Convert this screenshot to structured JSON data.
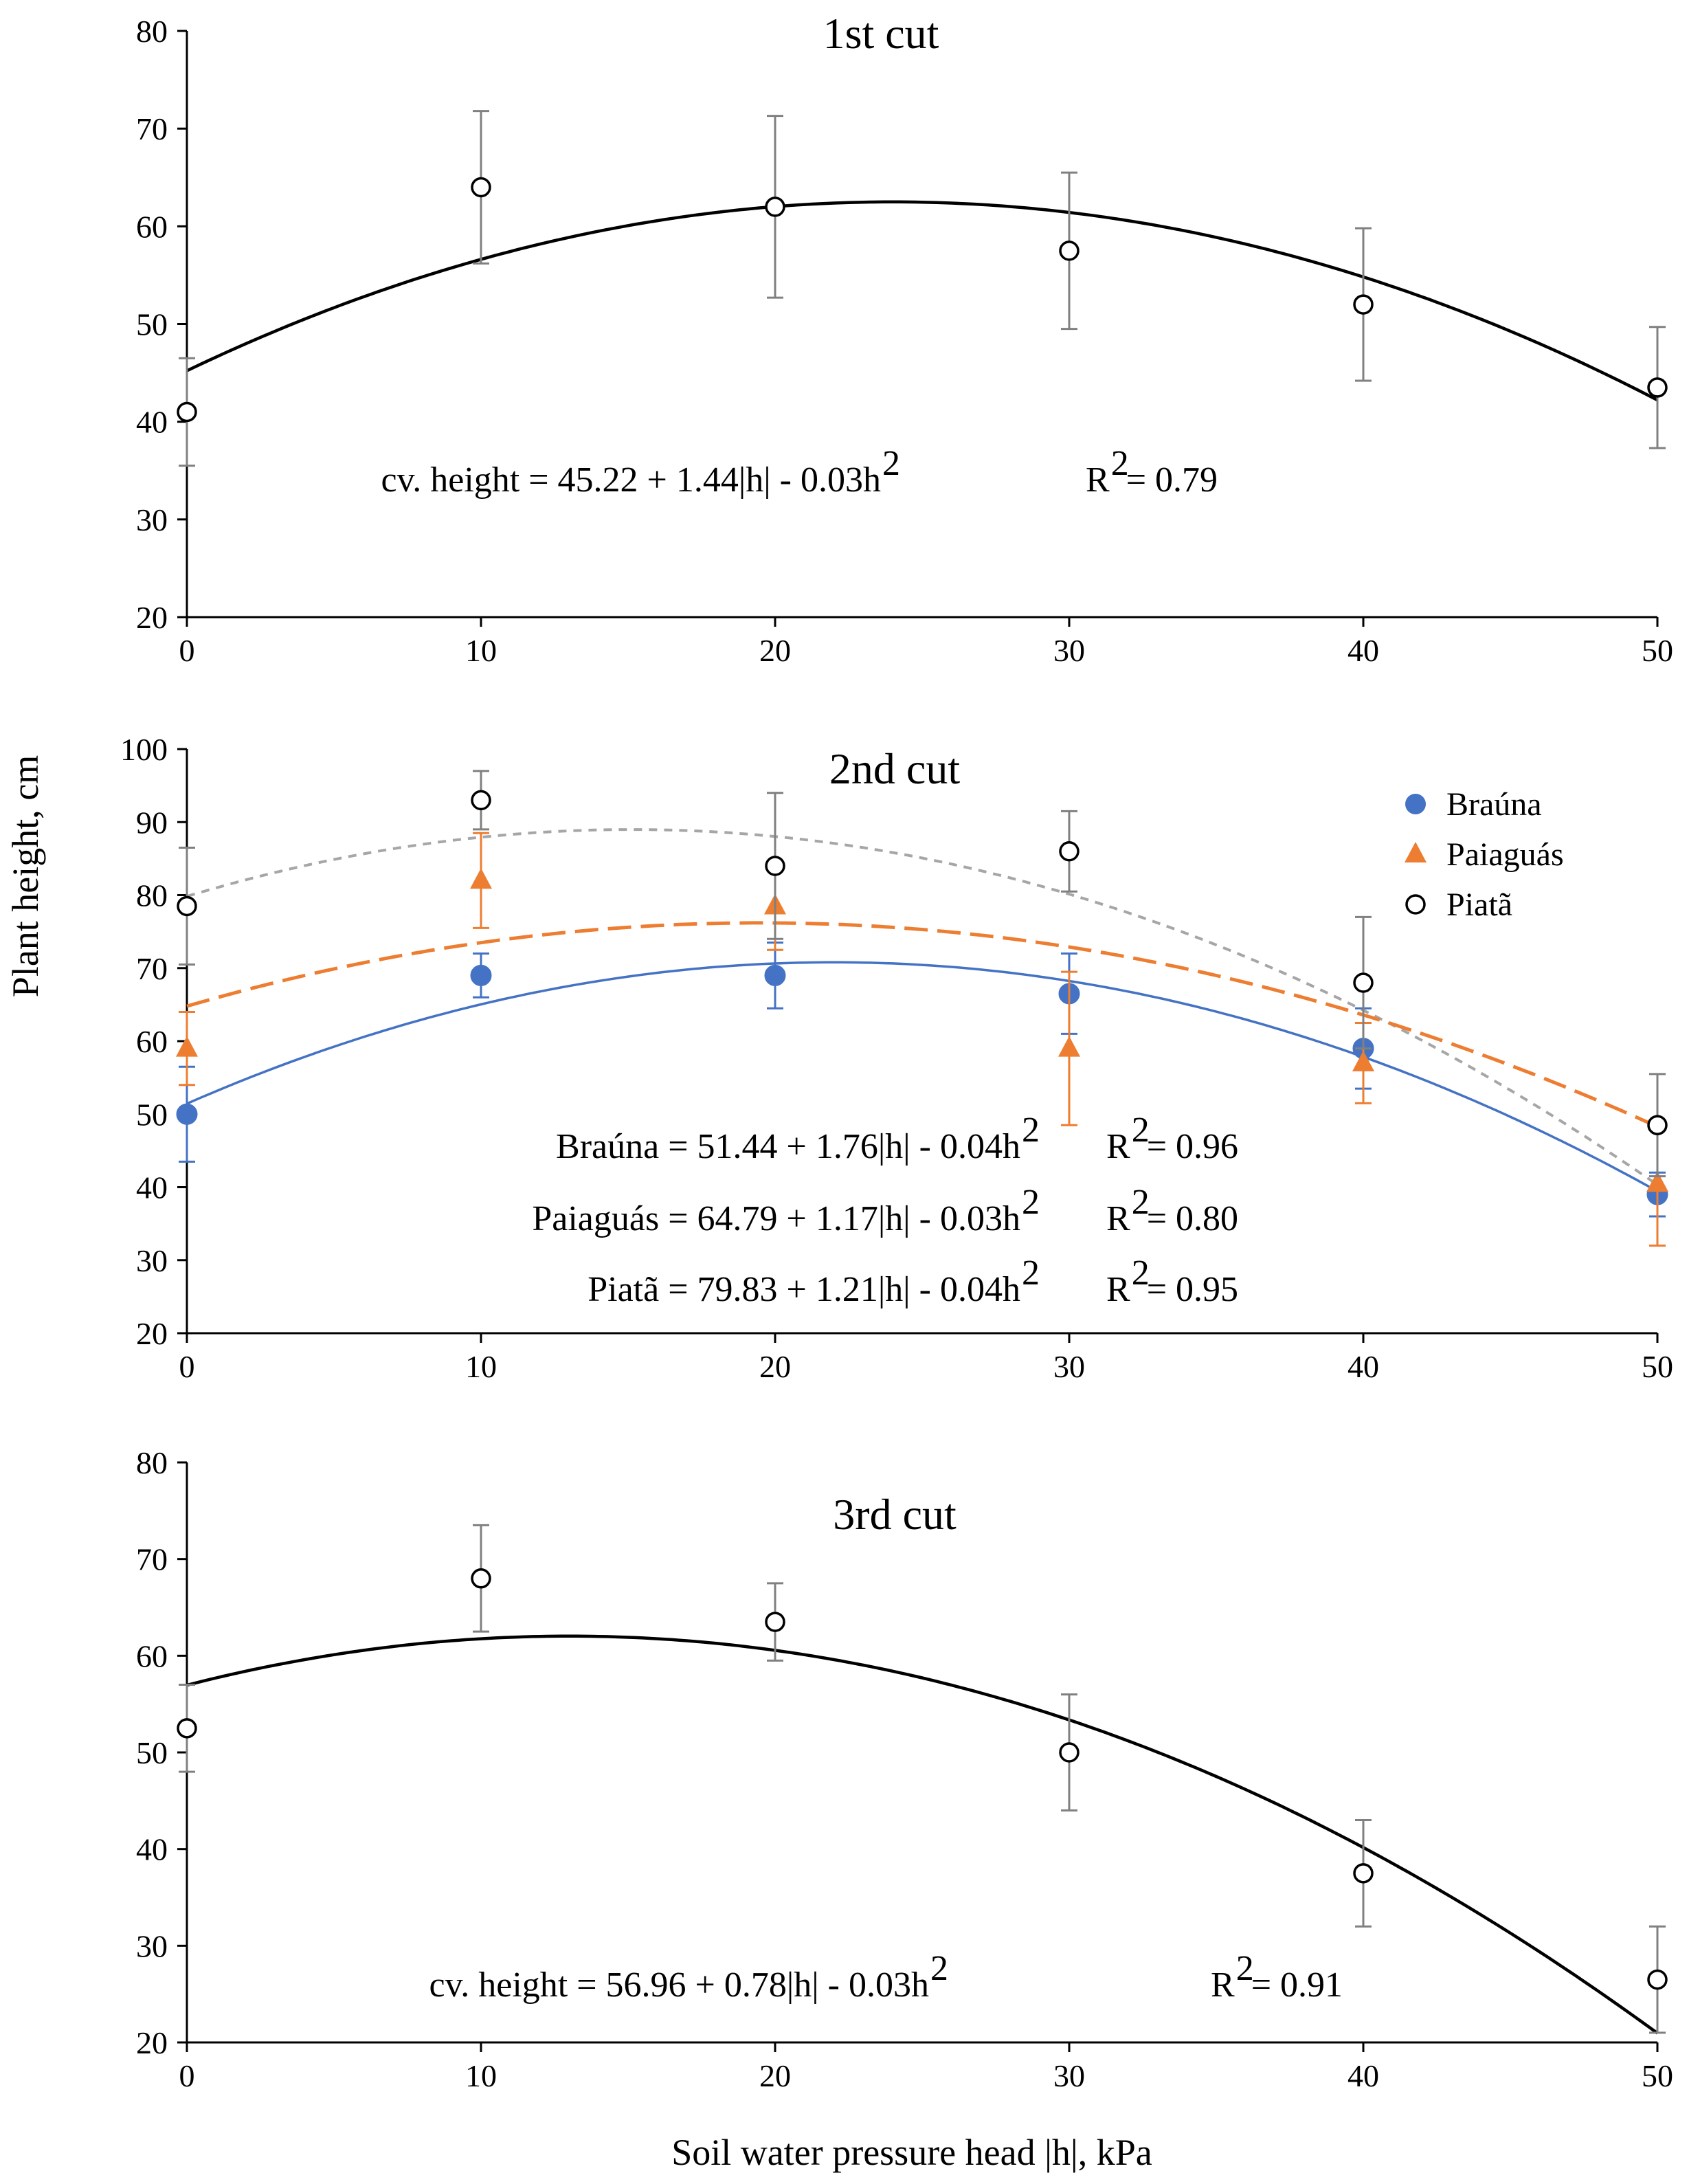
{
  "figure": {
    "ylabel": "Plant height, cm",
    "xlabel": "Soil water pressure head |h|, kPa"
  },
  "chart_data": [
    {
      "type": "scatter",
      "title": "1st cut",
      "xlabel": "Soil water pressure head |h|, kPa",
      "ylabel": "Plant height, cm",
      "xlim": [
        0,
        50
      ],
      "ylim": [
        20,
        80
      ],
      "xticks": [
        0,
        10,
        20,
        30,
        40,
        50
      ],
      "yticks": [
        20,
        30,
        40,
        50,
        60,
        70,
        80
      ],
      "series": [
        {
          "name": "Piatã",
          "marker": "open-circle",
          "color": "#000000",
          "x": [
            0,
            10,
            20,
            30,
            40,
            50
          ],
          "y": [
            41,
            64,
            62,
            57.5,
            52,
            43.5
          ],
          "err": [
            5.5,
            7.8,
            9.3,
            8,
            7.8,
            6.2
          ]
        }
      ],
      "fits": [
        {
          "series": "cv.",
          "color": "#000000",
          "style": "solid",
          "width": 4.5,
          "a": 45.22,
          "b": 1.44,
          "c": -0.03
        }
      ],
      "equations": [
        {
          "text": "cv. height = 45.22 + 1.44|h| - 0.03h",
          "exp": "2",
          "r2": "R",
          "r2exp": "2",
          "r2val": " = 0.79"
        }
      ]
    },
    {
      "type": "scatter",
      "title": "2nd cut",
      "xlabel": "Soil water pressure head |h|, kPa",
      "ylabel": "Plant height, cm",
      "xlim": [
        0,
        50
      ],
      "ylim": [
        20,
        100
      ],
      "xticks": [
        0,
        10,
        20,
        30,
        40,
        50
      ],
      "yticks": [
        20,
        30,
        40,
        50,
        60,
        70,
        80,
        90,
        100
      ],
      "legend": [
        "Braúna",
        "Paiaguás",
        "Piatã"
      ],
      "series": [
        {
          "name": "Braúna",
          "marker": "filled-circle",
          "color": "#4472C4",
          "x": [
            0,
            10,
            20,
            30,
            40,
            50
          ],
          "y": [
            50,
            69,
            69,
            66.5,
            59,
            39
          ],
          "err": [
            6.5,
            3,
            4.5,
            5.5,
            5.5,
            3
          ]
        },
        {
          "name": "Paiaguás",
          "marker": "triangle",
          "color": "#ED7D31",
          "x": [
            0,
            10,
            20,
            30,
            40,
            50
          ],
          "y": [
            59,
            82,
            78.5,
            59,
            57,
            40.5
          ],
          "err": [
            5,
            6.5,
            6,
            10.5,
            5.5,
            8.5
          ]
        },
        {
          "name": "Piatã",
          "marker": "open-circle",
          "color": "#000000",
          "x": [
            0,
            10,
            20,
            30,
            40,
            50
          ],
          "y": [
            78.5,
            93,
            84,
            86,
            68,
            48.5
          ],
          "err": [
            8,
            4,
            10,
            5.5,
            9,
            7
          ]
        }
      ],
      "fits": [
        {
          "series": "Piatã",
          "color": "#A6A6A6",
          "style": "dotted",
          "width": 4,
          "a": 79.83,
          "b": 1.21,
          "c": -0.04
        },
        {
          "series": "Paiaguás",
          "color": "#ED7D31",
          "style": "dashed",
          "width": 5,
          "a": 64.79,
          "b": 1.17,
          "c": -0.03
        },
        {
          "series": "Braúna",
          "color": "#4472C4",
          "style": "solid",
          "width": 3.5,
          "a": 51.44,
          "b": 1.76,
          "c": -0.04
        }
      ],
      "equations": [
        {
          "text": "Braúna = 51.44 + 1.76|h| - 0.04h",
          "exp": "2",
          "r2": "R",
          "r2exp": "2",
          "r2val": " = 0.96"
        },
        {
          "text": "Paiaguás = 64.79 + 1.17|h| - 0.03h",
          "exp": "2",
          "r2": "R",
          "r2exp": "2",
          "r2val": " = 0.80"
        },
        {
          "text": "Piatã = 79.83 + 1.21|h| - 0.04h",
          "exp": "2",
          "r2": "R",
          "r2exp": "2",
          "r2val": " = 0.95"
        }
      ]
    },
    {
      "type": "scatter",
      "title": "3rd cut",
      "xlabel": "Soil water pressure head |h|, kPa",
      "ylabel": "Plant height, cm",
      "xlim": [
        0,
        50
      ],
      "ylim": [
        20,
        80
      ],
      "xticks": [
        0,
        10,
        20,
        30,
        40,
        50
      ],
      "yticks": [
        20,
        30,
        40,
        50,
        60,
        70,
        80
      ],
      "series": [
        {
          "name": "Piatã",
          "marker": "open-circle",
          "color": "#000000",
          "x": [
            0,
            10,
            20,
            30,
            40,
            50
          ],
          "y": [
            52.5,
            68,
            63.5,
            50,
            37.5,
            26.5
          ],
          "err": [
            4.5,
            5.5,
            4,
            6,
            5.5,
            5.5
          ]
        }
      ],
      "fits": [
        {
          "series": "cv.",
          "color": "#000000",
          "style": "solid",
          "width": 4.5,
          "a": 56.96,
          "b": 0.78,
          "c": -0.03
        }
      ],
      "equations": [
        {
          "text": "cv. height = 56.96 + 0.78|h| - 0.03h",
          "exp": "2",
          "r2": "R",
          "r2exp": "2",
          "r2val": " = 0.91"
        }
      ]
    }
  ]
}
